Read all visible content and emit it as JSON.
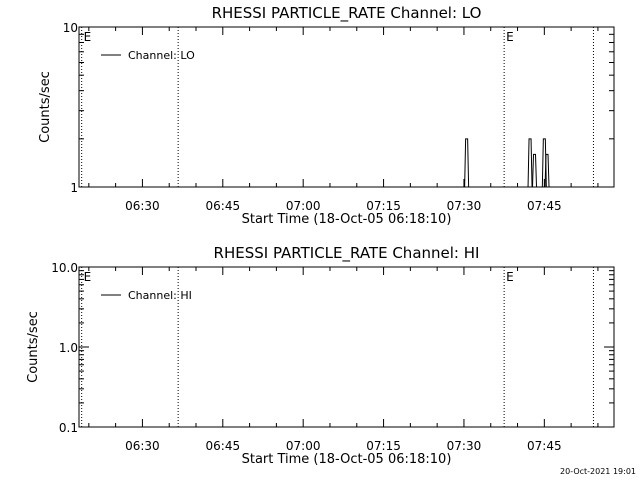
{
  "chart_data": [
    {
      "type": "line",
      "title": "RHESSI PARTICLE_RATE Channel: LO",
      "xlabel": "Start Time (18-Oct-05 06:18:10)",
      "ylabel": "Counts/sec",
      "yscale": "log",
      "ylim": [
        1,
        10
      ],
      "y_tick_labels": [
        "1",
        "10"
      ],
      "y_tick_values": [
        1,
        10
      ],
      "xlim": [
        "06:18:10",
        "07:58:00"
      ],
      "x_tick_labels": [
        "06:30",
        "06:45",
        "07:00",
        "07:15",
        "07:30",
        "07:45"
      ],
      "x_tick_values": [
        "06:30",
        "06:45",
        "07:00",
        "07:15",
        "07:30",
        "07:45"
      ],
      "legend": {
        "position": "top-left",
        "entries": [
          "Channel: LO"
        ]
      },
      "eclipse_markers": [
        {
          "time": "06:18:40",
          "label": "E"
        },
        {
          "time": "06:36:40",
          "label": ""
        },
        {
          "time": "07:37:30",
          "label": "E"
        },
        {
          "time": "07:54:10",
          "label": ""
        }
      ],
      "series": [
        {
          "name": "Channel: LO",
          "spikes": [
            {
              "time": "07:30:30",
              "value": 2
            },
            {
              "time": "07:42:20",
              "value": 2
            },
            {
              "time": "07:43:10",
              "value": 1.6
            },
            {
              "time": "07:45:00",
              "value": 2
            },
            {
              "time": "07:45:30",
              "value": 1.6
            }
          ]
        }
      ]
    },
    {
      "type": "line",
      "title": "RHESSI PARTICLE_RATE Channel: HI",
      "xlabel": "Start Time (18-Oct-05 06:18:10)",
      "ylabel": "Counts/sec",
      "yscale": "log",
      "ylim": [
        0.1,
        10
      ],
      "y_tick_labels": [
        "0.1",
        "1.0",
        "10.0"
      ],
      "y_tick_values": [
        0.1,
        1,
        10
      ],
      "xlim": [
        "06:18:10",
        "07:58:00"
      ],
      "x_tick_labels": [
        "06:30",
        "06:45",
        "07:00",
        "07:15",
        "07:30",
        "07:45"
      ],
      "x_tick_values": [
        "06:30",
        "06:45",
        "07:00",
        "07:15",
        "07:30",
        "07:45"
      ],
      "legend": {
        "position": "top-left",
        "entries": [
          "Channel: HI"
        ]
      },
      "eclipse_markers": [
        {
          "time": "06:18:40",
          "label": "E"
        },
        {
          "time": "06:36:40",
          "label": ""
        },
        {
          "time": "07:37:30",
          "label": "E"
        },
        {
          "time": "07:54:10",
          "label": ""
        }
      ],
      "series": [
        {
          "name": "Channel: HI",
          "spikes": []
        }
      ]
    }
  ],
  "footer": {
    "timestamp": "20-Oct-2021 19:01"
  }
}
